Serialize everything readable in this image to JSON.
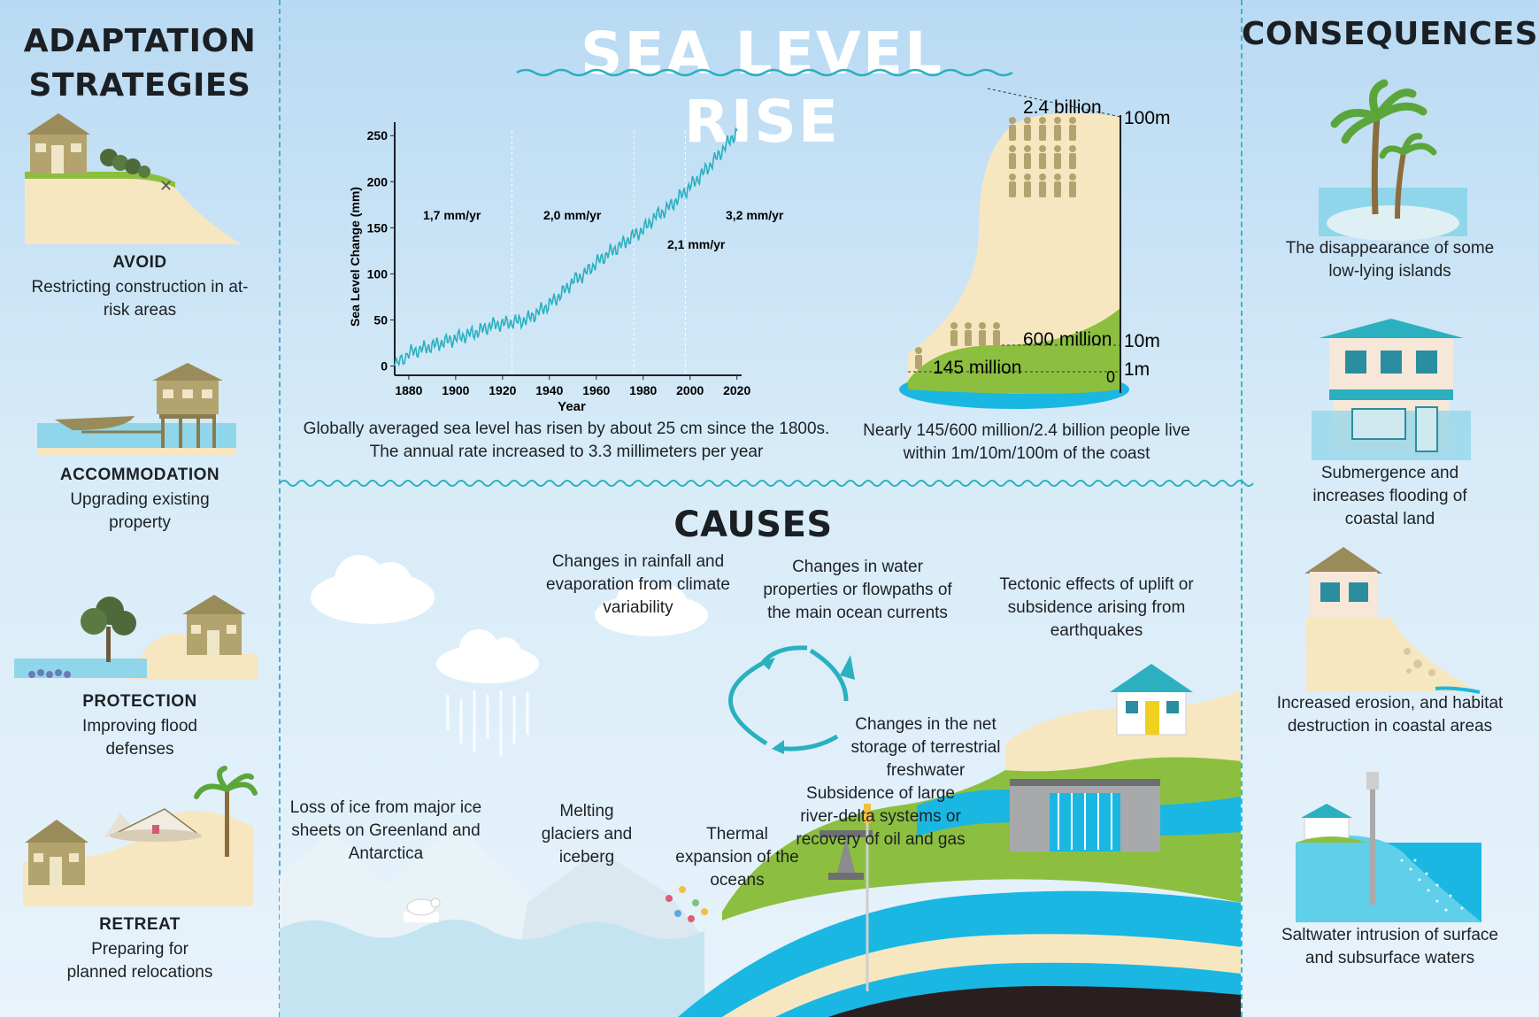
{
  "title": "SEA LEVEL RISE",
  "adaptation": {
    "heading_line1": "ADAPTATION",
    "heading_line2": "STRATEGIES",
    "items": [
      {
        "title": "AVOID",
        "desc": "Restricting construction in at-risk areas"
      },
      {
        "title": "ACCOMMODATION",
        "desc": "Upgrading existing property"
      },
      {
        "title": "PROTECTION",
        "desc": "Improving flood defenses"
      },
      {
        "title": "RETREAT",
        "desc": "Preparing for planned relocations"
      }
    ]
  },
  "consequences": {
    "heading": "CONSEQUENCES",
    "items": [
      "The disappearance of some low-lying islands",
      "Submergence and increases flooding of coastal land",
      "Increased erosion, and habitat destruction in coastal areas",
      "Saltwater intrusion of surface and subsurface waters"
    ]
  },
  "chart_data": {
    "type": "line",
    "xlabel": "Year",
    "ylabel": "Sea Level Change (mm)",
    "xlim": [
      1880,
      2020
    ],
    "ylim": [
      0,
      250
    ],
    "xticks": [
      "1880",
      "1900",
      "1920",
      "1940",
      "1960",
      "1980",
      "2000",
      "2020"
    ],
    "yticks": [
      "0",
      "50",
      "100",
      "150",
      "200",
      "250"
    ],
    "x": [
      1874,
      1880,
      1885,
      1890,
      1895,
      1900,
      1905,
      1910,
      1915,
      1920,
      1925,
      1930,
      1935,
      1940,
      1945,
      1950,
      1955,
      1960,
      1965,
      1970,
      1975,
      1980,
      1985,
      1990,
      1995,
      2000,
      2005,
      2010,
      2015,
      2020
    ],
    "y": [
      0,
      14,
      18,
      22,
      26,
      30,
      34,
      38,
      44,
      46,
      48,
      50,
      58,
      67,
      78,
      92,
      100,
      112,
      122,
      130,
      140,
      148,
      162,
      170,
      182,
      195,
      208,
      222,
      238,
      255
    ],
    "annotations": [
      {
        "text": "1,7 mm/yr"
      },
      {
        "text": "2,0 mm/yr"
      },
      {
        "text": "2,1 mm/yr"
      },
      {
        "text": "3,2 mm/yr"
      }
    ],
    "caption_line1": "Globally averaged sea level has risen by about 25 cm since the 1800s.",
    "caption_line2": "The annual rate increased to 3.3 millimeters per year"
  },
  "population": {
    "labels": {
      "b24": "2.4 billion",
      "m600": "600 million",
      "m145": "145 million"
    },
    "heights": {
      "h100": "100m",
      "h10": "10m",
      "h1": "1m",
      "h0": "0"
    },
    "caption_line1": "Nearly 145/600 million/2.4 billion people live",
    "caption_line2": "within 1m/10m/100m of the coast"
  },
  "causes": {
    "heading": "CAUSES",
    "rainfall": "Changes in rainfall and evaporation from climate variability",
    "currents": "Changes in water properties or flowpaths of the main ocean currents",
    "tectonic": "Tectonic effects of uplift or subsidence arising from earthquakes",
    "storage": "Changes in the net storage of terrestrial freshwater",
    "subsidence": "Subsidence of large river-delta systems or recovery of oil and gas",
    "ice": "Loss of ice from major ice sheets on Greenland and Antarctica",
    "glaciers": "Melting glaciers and iceberg",
    "thermal": "Thermal expansion of the oceans"
  },
  "colors": {
    "accent": "#2ab0bf",
    "sand": "#f6e7c1",
    "grass": "#8cbf3f",
    "water": "#1ab7e3",
    "house": "#b3a46f"
  }
}
